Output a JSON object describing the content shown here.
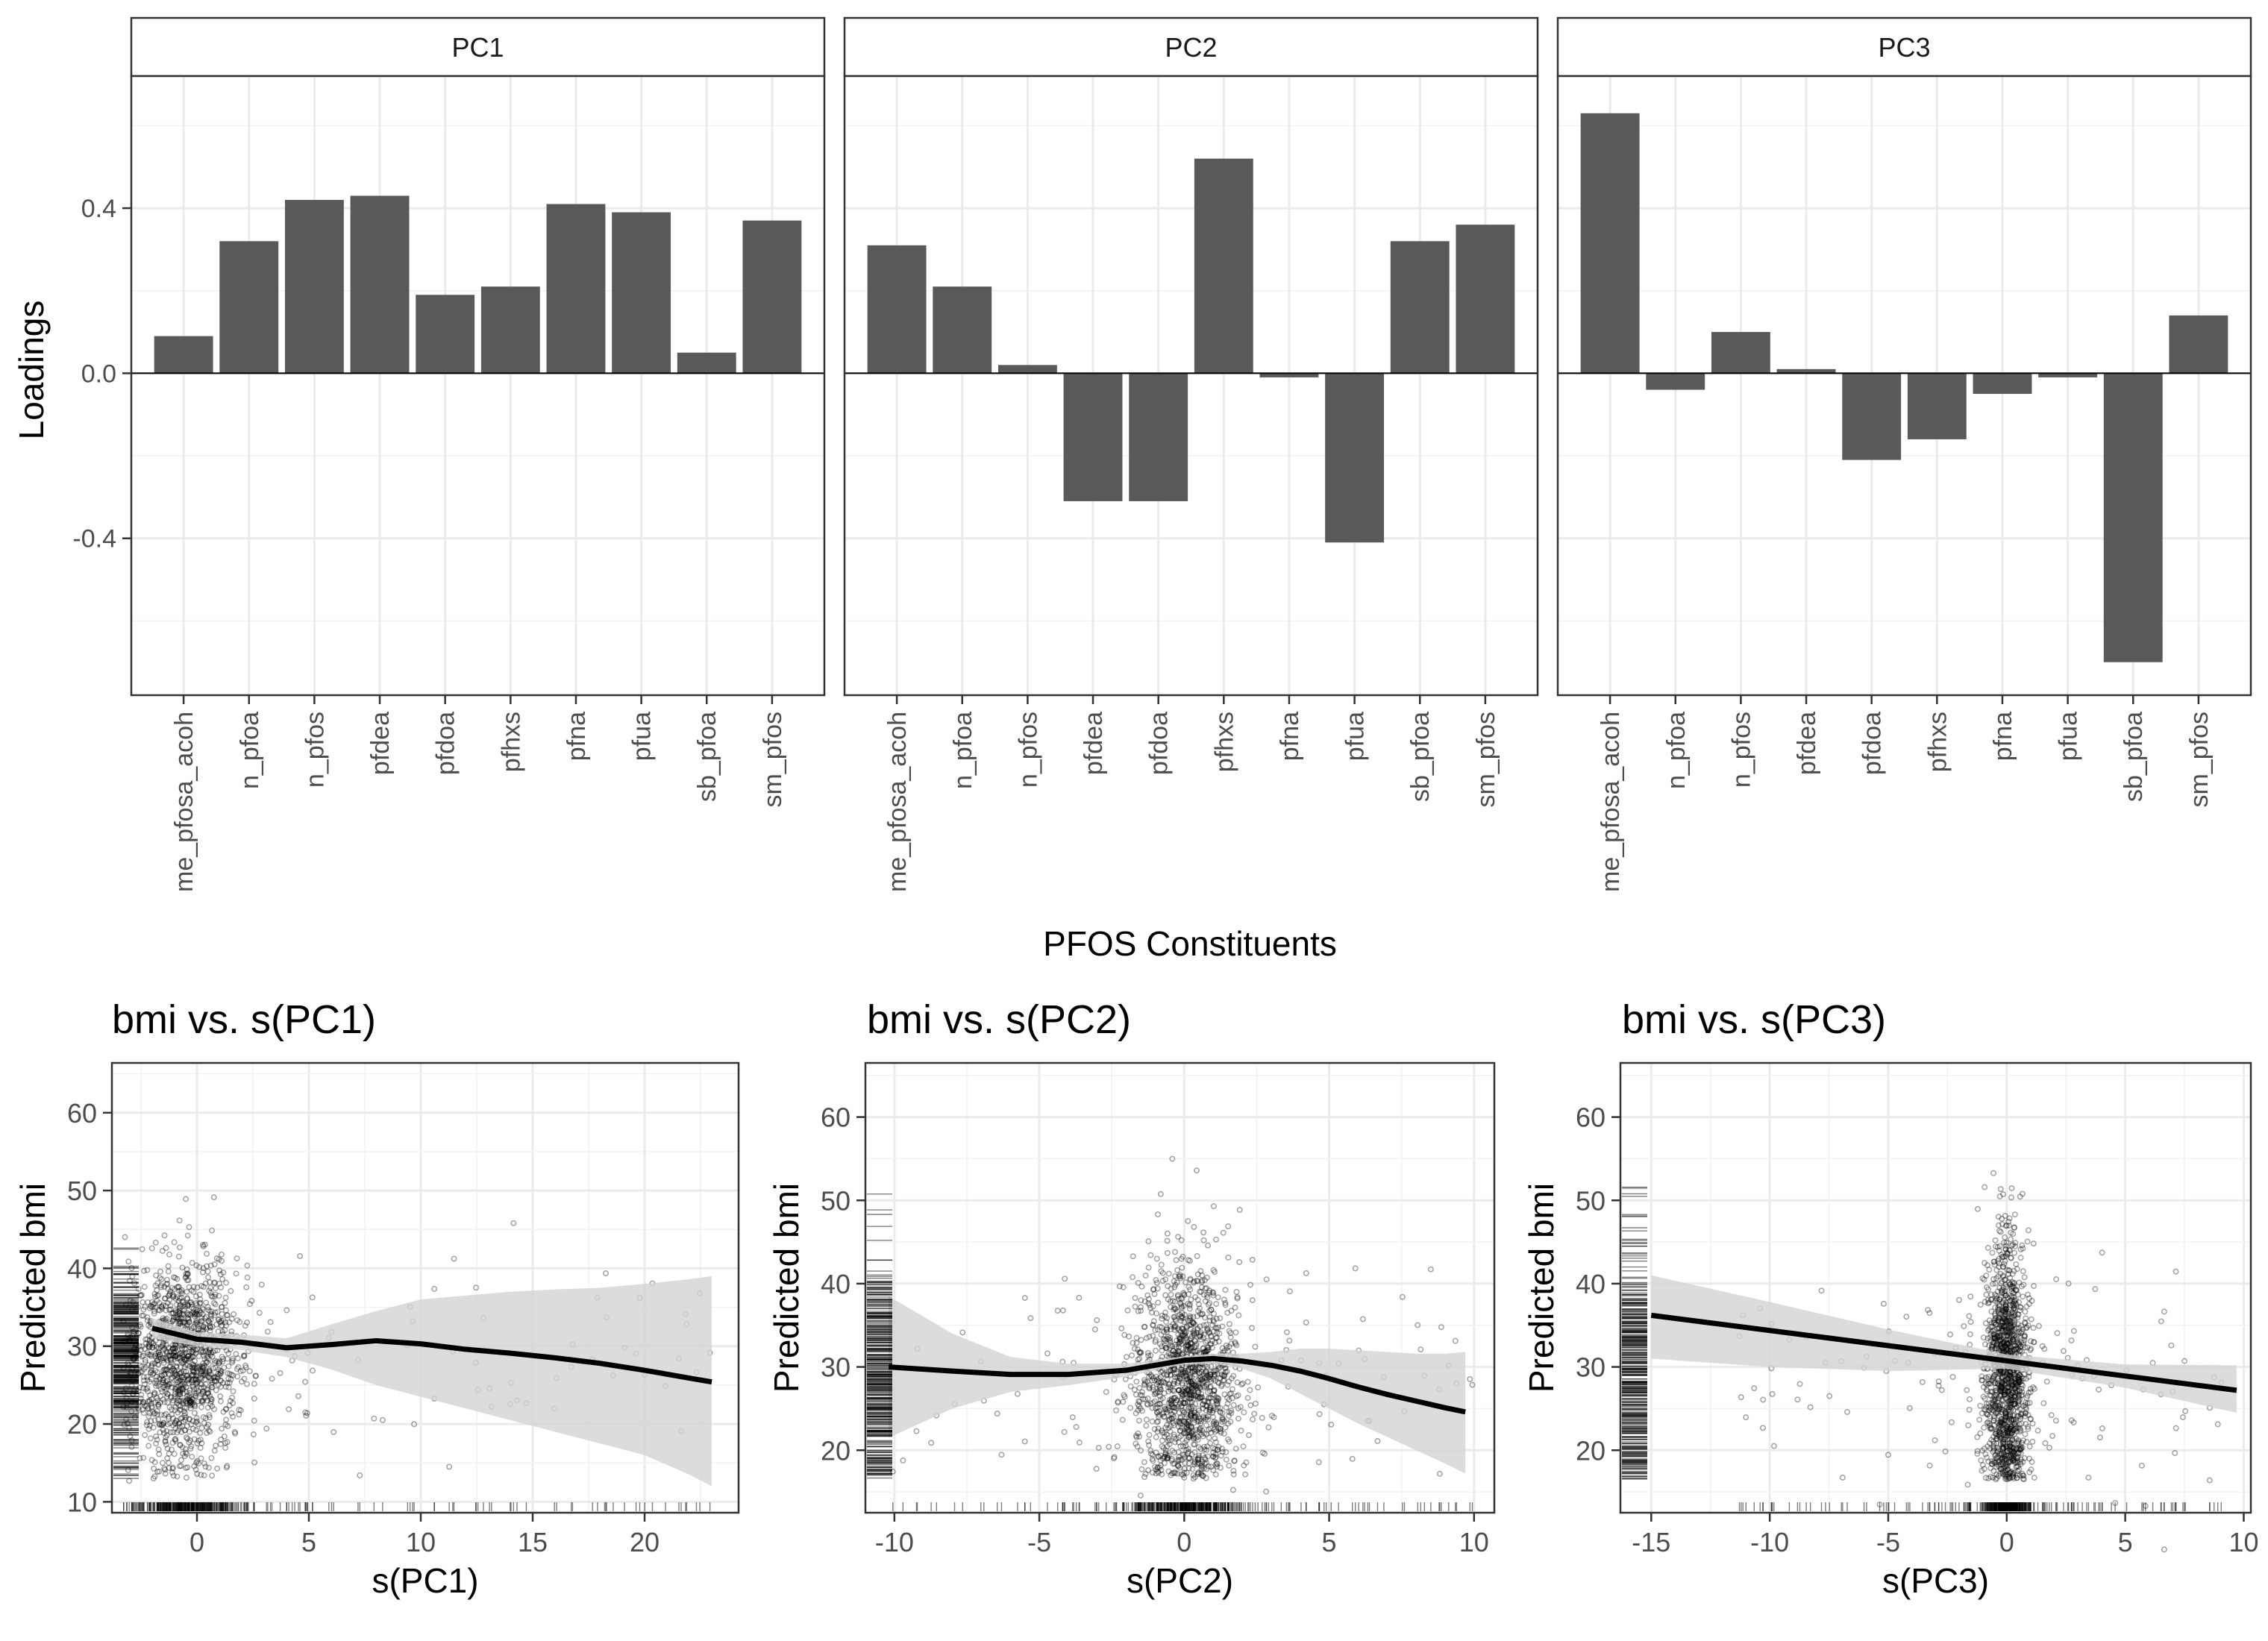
{
  "figure": {
    "x_axis_title": "PFOS Constituents",
    "y_axis_title": "Loadings"
  },
  "colors": {
    "bar": "#595959",
    "grid": "#ebebeb",
    "strip_bg": "#ffffff",
    "panel_border": "#333333",
    "smooth_line": "#000000",
    "ribbon": "#d3d3d3",
    "points": "#000000"
  },
  "chart_data": [
    {
      "type": "bar",
      "facet": "PC1",
      "categories": [
        "me_pfosa_acoh",
        "n_pfoa",
        "n_pfos",
        "pfdea",
        "pfdoa",
        "pfhxs",
        "pfna",
        "pfua",
        "sb_pfoa",
        "sm_pfos"
      ],
      "values": [
        0.09,
        0.32,
        0.42,
        0.43,
        0.19,
        0.21,
        0.41,
        0.39,
        0.05,
        0.37
      ],
      "ylim": [
        -0.78,
        0.72
      ],
      "yticks": [
        -0.4,
        0.0,
        0.4
      ],
      "ytick_labels": [
        "-0.4",
        "0.0",
        "0.4"
      ],
      "grid": true
    },
    {
      "type": "bar",
      "facet": "PC2",
      "categories": [
        "me_pfosa_acoh",
        "n_pfoa",
        "n_pfos",
        "pfdea",
        "pfdoa",
        "pfhxs",
        "pfna",
        "pfua",
        "sb_pfoa",
        "sm_pfos"
      ],
      "values": [
        0.31,
        0.21,
        0.02,
        -0.31,
        -0.31,
        0.52,
        -0.01,
        -0.41,
        0.32,
        0.36
      ],
      "ylim": [
        -0.78,
        0.72
      ],
      "grid": true
    },
    {
      "type": "bar",
      "facet": "PC3",
      "categories": [
        "me_pfosa_acoh",
        "n_pfoa",
        "n_pfos",
        "pfdea",
        "pfdoa",
        "pfhxs",
        "pfna",
        "pfua",
        "sb_pfoa",
        "sm_pfos"
      ],
      "values": [
        0.63,
        -0.04,
        0.1,
        0.01,
        -0.21,
        -0.16,
        -0.05,
        -0.01,
        -0.7,
        0.14
      ],
      "ylim": [
        -0.78,
        0.72
      ],
      "grid": true
    },
    {
      "type": "scatter",
      "title": "bmi  vs. s(PC1)",
      "xlabel": "s(PC1)",
      "ylabel": "Predicted bmi",
      "xlim": [
        -3.8,
        24.2
      ],
      "ylim": [
        8.6,
        66.4
      ],
      "xticks": [
        0,
        5,
        10,
        15,
        20
      ],
      "yticks": [
        10,
        20,
        30,
        40,
        50,
        60
      ],
      "grid": true,
      "rug": true,
      "points_description": "dense cloud of ~1500 semi-transparent points concentrated near x=-2..2, y=15..58; sparse points to x=23",
      "smooth_line": {
        "x": [
          -2,
          0,
          2,
          4,
          6,
          8,
          10,
          12,
          14,
          16,
          18,
          20,
          22,
          23
        ],
        "y": [
          32.3,
          30.9,
          30.5,
          29.8,
          30.2,
          30.7,
          30.3,
          29.6,
          29.1,
          28.5,
          27.8,
          26.9,
          25.9,
          25.4
        ]
      },
      "ribbon": {
        "x": [
          -2,
          0,
          2,
          4,
          6,
          8,
          10,
          12,
          14,
          16,
          18,
          20,
          22,
          23
        ],
        "lower": [
          31,
          30,
          29.5,
          28.6,
          27,
          25,
          23.5,
          22,
          20.5,
          19,
          17.5,
          16,
          13.5,
          12
        ],
        "upper": [
          33.6,
          31.8,
          31.5,
          31,
          32.8,
          34.5,
          36,
          36.5,
          37,
          37.3,
          37.5,
          38,
          38.6,
          39
        ]
      }
    },
    {
      "type": "scatter",
      "title": "bmi  vs. s(PC2)",
      "xlabel": "s(PC2)",
      "ylabel": "Predicted bmi",
      "xlim": [
        -11.0,
        10.7
      ],
      "ylim": [
        12.5,
        66.5
      ],
      "xticks": [
        -10,
        -5,
        0,
        5,
        10
      ],
      "yticks": [
        20,
        30,
        40,
        50,
        60
      ],
      "grid": true,
      "rug": true,
      "points_description": "dense vertical cloud around x=-2..2, y=15..58; sparse points spreading to x=-10 and x=10",
      "smooth_line": {
        "x": [
          -10.2,
          -8,
          -6,
          -4,
          -2,
          -1,
          0,
          1,
          2,
          3,
          4,
          5,
          6,
          7,
          8,
          9,
          9.7
        ],
        "y": [
          30,
          29.5,
          29.1,
          29.1,
          29.6,
          30.2,
          30.8,
          31.0,
          30.7,
          30.2,
          29.5,
          28.6,
          27.6,
          26.7,
          25.9,
          25.1,
          24.6
        ]
      },
      "ribbon": {
        "x": [
          -10.2,
          -8,
          -6,
          -4,
          -2,
          -1,
          0,
          1,
          2,
          3,
          4,
          5,
          6,
          7,
          8,
          9,
          9.7
        ],
        "lower": [
          21.5,
          25,
          27,
          27.8,
          28.8,
          29.6,
          30.3,
          30.4,
          29.8,
          28.6,
          26.8,
          25,
          23.2,
          21.6,
          20,
          18.4,
          17.2
        ],
        "upper": [
          38.5,
          34,
          31.2,
          30.4,
          30.4,
          30.8,
          31.3,
          31.6,
          31.6,
          31.8,
          32.2,
          32.2,
          32,
          31.8,
          31.6,
          31.6,
          31.8
        ]
      }
    },
    {
      "type": "scatter",
      "title": "bmi  vs. s(PC3)",
      "xlabel": "s(PC3)",
      "ylabel": "Predicted bmi",
      "xlim": [
        -16.3,
        10.3
      ],
      "ylim": [
        12.5,
        66.5
      ],
      "xticks": [
        -15,
        -10,
        -5,
        0,
        5,
        10
      ],
      "yticks": [
        20,
        30,
        40,
        50,
        60
      ],
      "grid": true,
      "rug": true,
      "points_description": "tall narrow cloud at x=-1..1, y=15..64; sparse points spreading to x=-15 and x=10",
      "smooth_line": {
        "x": [
          -15,
          9.7
        ],
        "y": [
          36.2,
          27.2
        ]
      },
      "ribbon": {
        "x": [
          -15,
          -10,
          -5,
          0,
          5,
          9.7
        ],
        "lower": [
          31,
          30,
          29.5,
          29.8,
          27.5,
          24.5
        ],
        "upper": [
          41,
          37.8,
          34.5,
          31.5,
          30.3,
          30.2
        ]
      }
    }
  ]
}
